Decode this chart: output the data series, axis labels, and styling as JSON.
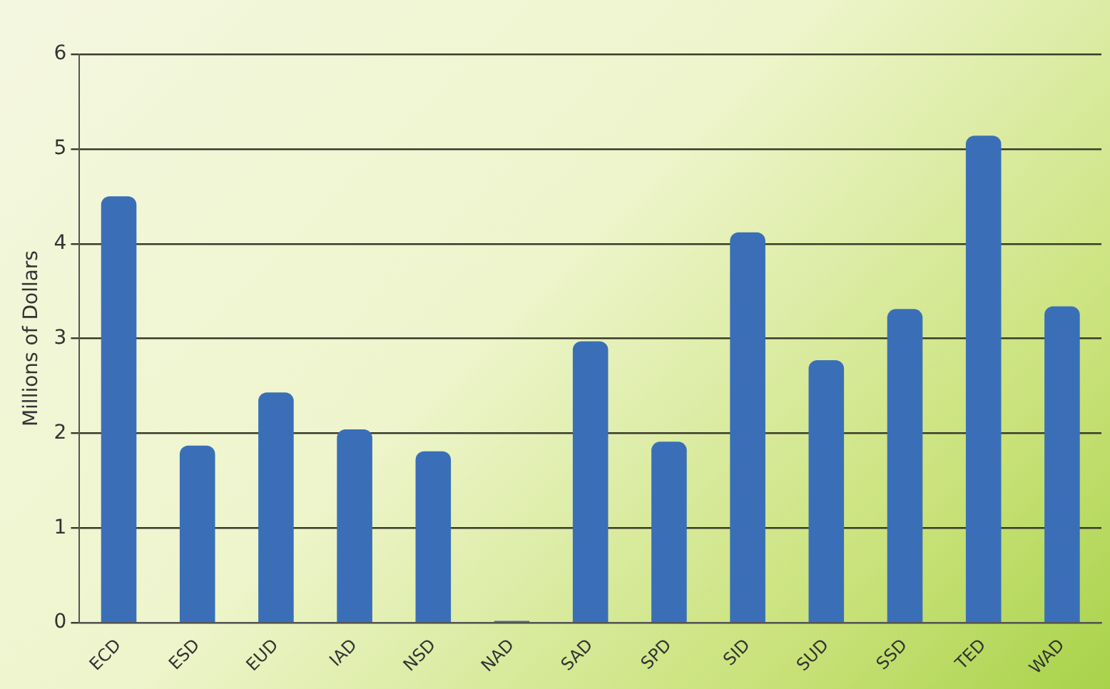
{
  "chart_data": {
    "type": "bar",
    "ylabel": "Millions of Dollars",
    "categories": [
      "ECD",
      "ESD",
      "EUD",
      "IAD",
      "NSD",
      "NAD",
      "SAD",
      "SPD",
      "SID",
      "SUD",
      "SSD",
      "TED",
      "WAD"
    ],
    "values": [
      4.5,
      1.87,
      2.43,
      2.04,
      1.81,
      0.02,
      2.97,
      1.91,
      4.12,
      2.77,
      3.31,
      5.14,
      3.34
    ],
    "color": "#3a6fb8",
    "ylim": [
      0,
      6
    ],
    "yticks": [
      0,
      1,
      2,
      3,
      4,
      5,
      6
    ],
    "grid": "y",
    "legend": false
  }
}
